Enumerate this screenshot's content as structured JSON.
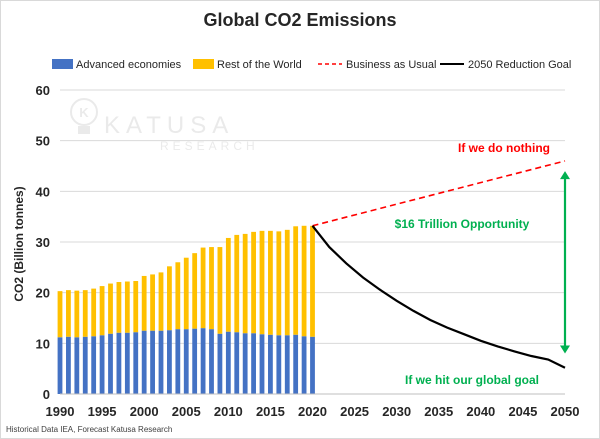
{
  "title": "Global CO2 Emissions",
  "watermark": {
    "brand": "KATUSA",
    "sub": "RESEARCH",
    "letter": "K"
  },
  "source": "Historical Data IEA, Forecast Katusa Research",
  "annotations": {
    "nothing": "If we do nothing",
    "opportunity": "$16 Trillion  Opportunity",
    "goal": "If we hit our global goal"
  },
  "colors": {
    "advanced": "#4472c4",
    "rest": "#ffc000",
    "bau": "#ff0000",
    "goal": "#000000",
    "accent": "#00b050"
  },
  "chart_data": {
    "type": "bar",
    "title": "Global CO2 Emissions",
    "ylabel": "CO2 (Billion tonnes)",
    "xlabel": "",
    "ylim": [
      0,
      60
    ],
    "yticks": [
      0,
      10,
      20,
      30,
      40,
      50,
      60
    ],
    "xlim": [
      1990,
      2050
    ],
    "xticks": [
      1990,
      1995,
      2000,
      2005,
      2010,
      2015,
      2020,
      2025,
      2030,
      2035,
      2040,
      2045,
      2050
    ],
    "grid": true,
    "legend_position": "top",
    "categories": [
      1990,
      1991,
      1992,
      1993,
      1994,
      1995,
      1996,
      1997,
      1998,
      1999,
      2000,
      2001,
      2002,
      2003,
      2004,
      2005,
      2006,
      2007,
      2008,
      2009,
      2010,
      2011,
      2012,
      2013,
      2014,
      2015,
      2016,
      2017,
      2018,
      2019,
      2020
    ],
    "series": [
      {
        "name": "Advanced economies",
        "kind": "stacked-bar",
        "values": [
          11.2,
          11.3,
          11.2,
          11.3,
          11.4,
          11.6,
          11.9,
          12.1,
          12.1,
          12.2,
          12.5,
          12.5,
          12.5,
          12.6,
          12.8,
          12.8,
          12.9,
          13.0,
          12.8,
          11.9,
          12.3,
          12.2,
          12.0,
          12.0,
          11.8,
          11.7,
          11.6,
          11.6,
          11.7,
          11.4,
          11.3
        ]
      },
      {
        "name": "Rest of the World",
        "kind": "stacked-bar",
        "values": [
          9.1,
          9.2,
          9.2,
          9.2,
          9.4,
          9.7,
          9.9,
          10.0,
          10.1,
          10.1,
          10.8,
          11.1,
          11.5,
          12.6,
          13.2,
          14.1,
          14.9,
          15.9,
          16.2,
          17.1,
          18.5,
          19.2,
          19.6,
          20.0,
          20.4,
          20.5,
          20.5,
          20.8,
          21.4,
          21.8,
          21.9
        ]
      },
      {
        "name": "Business as Usual",
        "kind": "line",
        "style": "dashed",
        "x": [
          2020,
          2050
        ],
        "y": [
          33.2,
          46.0
        ]
      },
      {
        "name": "2050 Reduction Goal",
        "kind": "line",
        "style": "solid",
        "x": [
          2020,
          2022,
          2024,
          2026,
          2028,
          2030,
          2032,
          2034,
          2036,
          2038,
          2040,
          2042,
          2044,
          2046,
          2048,
          2050
        ],
        "y": [
          33.2,
          29.0,
          25.8,
          23.0,
          20.6,
          18.4,
          16.4,
          14.6,
          13.1,
          11.8,
          10.5,
          9.4,
          8.4,
          7.5,
          6.8,
          5.2
        ]
      }
    ],
    "arrow": {
      "x": 2050,
      "y_from": 8.0,
      "y_to": 44.0
    }
  }
}
